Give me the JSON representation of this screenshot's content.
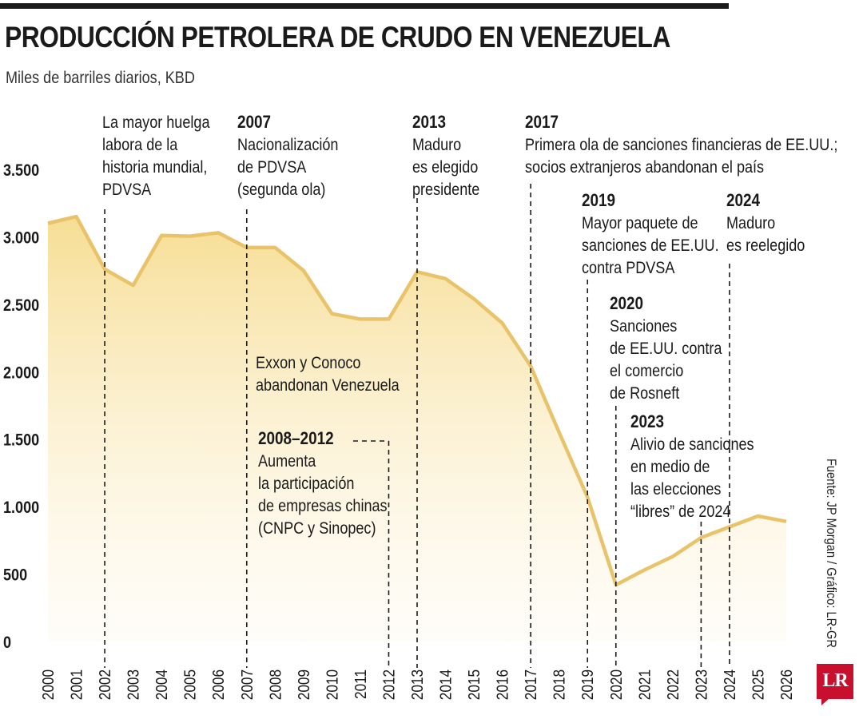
{
  "header": {
    "title": "PRODUCCIÓN PETROLERA DE CRUDO EN VENEZUELA",
    "subtitle": "Miles de barriles diarios, KBD"
  },
  "source": "Fuente: JP Morgan / Gráfico: LR-GR",
  "logo": {
    "text": "LR"
  },
  "colors": {
    "line": "#e8c36a",
    "area_top": "#f6dc8e",
    "text": "#1a1a1a"
  },
  "chart_data": {
    "type": "area",
    "title": "PRODUCCIÓN PETROLERA DE CRUDO EN VENEZUELA",
    "ylabel": "Miles de barriles diarios, KBD",
    "ylim": [
      0,
      3500
    ],
    "yticks": [
      0,
      500,
      1000,
      1500,
      2000,
      2500,
      3000,
      3500
    ],
    "ytick_labels": [
      "0",
      "500",
      "1.000",
      "1.500",
      "2.000",
      "2.500",
      "3.000",
      "3.500"
    ],
    "xlim": [
      2000,
      2026
    ],
    "x": [
      2000,
      2001,
      2002,
      2003,
      2004,
      2005,
      2006,
      2007,
      2008,
      2009,
      2010,
      2011,
      2012,
      2013,
      2014,
      2015,
      2016,
      2017,
      2018,
      2019,
      2020,
      2021,
      2022,
      2023,
      2024,
      2025,
      2026
    ],
    "series": [
      {
        "values": [
          3100,
          3150,
          2760,
          2640,
          3010,
          3005,
          3030,
          2920,
          2920,
          2750,
          2430,
          2390,
          2390,
          2740,
          2690,
          2540,
          2360,
          2040,
          1550,
          1070,
          420,
          530,
          630,
          770,
          850,
          930,
          890
        ]
      }
    ],
    "annotations": [
      {
        "year": 2002,
        "label": "",
        "text": [
          "La mayor huelga",
          "labora de la",
          "historia mundial,",
          "PDVSA"
        ]
      },
      {
        "year": 2007,
        "label": "2007",
        "text": [
          "Nacionalización",
          "de PDVSA",
          "(segunda ola)"
        ]
      },
      {
        "year": 2007,
        "label": "",
        "text": [
          "Exxon y Conoco",
          "abandonan Venezuela"
        ]
      },
      {
        "year": 2012,
        "label": "2008–2012",
        "text": [
          "Aumenta",
          "la participación",
          "de empresas chinas",
          "(CNPC y Sinopec)"
        ]
      },
      {
        "year": 2013,
        "label": "2013",
        "text": [
          "Maduro",
          "es elegido",
          "presidente"
        ]
      },
      {
        "year": 2017,
        "label": "2017",
        "text": [
          "Primera ola de sanciones financieras de EE.UU.;",
          "socios extranjeros abandonan el país"
        ]
      },
      {
        "year": 2019,
        "label": "2019",
        "text": [
          "Mayor paquete de",
          "sanciones de EE.UU.",
          "contra PDVSA"
        ]
      },
      {
        "year": 2020,
        "label": "2020",
        "text": [
          "Sanciones",
          "de EE.UU. contra",
          "el comercio",
          "de Rosneft"
        ]
      },
      {
        "year": 2023,
        "label": "2023",
        "text": [
          "Alivio de sanciones",
          "en medio de",
          "las elecciones",
          "“libres” de 2024"
        ]
      },
      {
        "year": 2024,
        "label": "2024",
        "text": [
          "Maduro",
          "es reelegido"
        ]
      }
    ]
  }
}
